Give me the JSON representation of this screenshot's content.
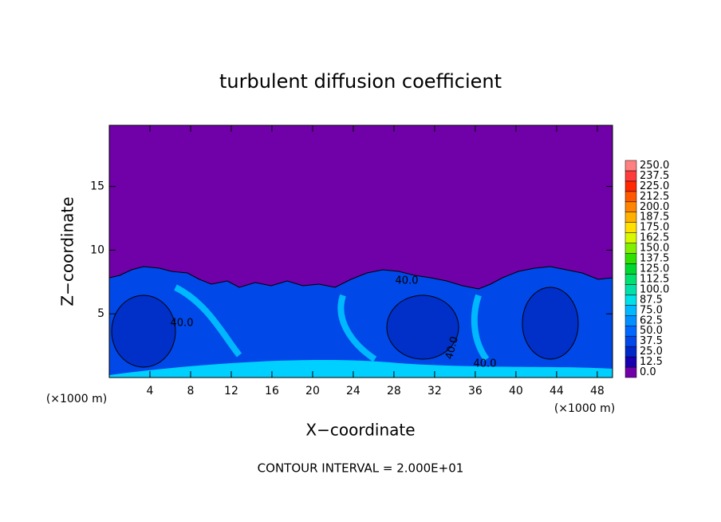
{
  "chart_data": {
    "type": "contour",
    "title": "turbulent diffusion coefficient",
    "x_label": "X−coordinate",
    "y_label": "Z−coordinate",
    "x_unit_label": "(×1000 m)",
    "footnote": "CONTOUR INTERVAL = 2.000E+01",
    "xlim": [
      0,
      49.5
    ],
    "ylim": [
      0,
      19.8
    ],
    "xticks": [
      4,
      8,
      12,
      16,
      20,
      24,
      28,
      32,
      36,
      40,
      44,
      48
    ],
    "yticks": [
      5,
      10,
      15
    ],
    "annotations": [
      "40.0",
      "40.0",
      "40.0",
      "40.0"
    ],
    "colorbar": {
      "levels": [
        {
          "value": 0,
          "label": "0.0"
        },
        {
          "value": 12.5,
          "label": "12.5"
        },
        {
          "value": 25,
          "label": "25.0"
        },
        {
          "value": 37.5,
          "label": "37.5"
        },
        {
          "value": 50,
          "label": "50.0"
        },
        {
          "value": 62.5,
          "label": "62.5"
        },
        {
          "value": 75,
          "label": "75.0"
        },
        {
          "value": 87.5,
          "label": "87.5"
        },
        {
          "value": 100,
          "label": "100.0"
        },
        {
          "value": 112.5,
          "label": "112.5"
        },
        {
          "value": 125,
          "label": "125.0"
        },
        {
          "value": 137.5,
          "label": "137.5"
        },
        {
          "value": 150,
          "label": "150.0"
        },
        {
          "value": 162.5,
          "label": "162.5"
        },
        {
          "value": 175,
          "label": "175.0"
        },
        {
          "value": 187.5,
          "label": "187.5"
        },
        {
          "value": 200,
          "label": "200.0"
        },
        {
          "value": 212.5,
          "label": "212.5"
        },
        {
          "value": 225,
          "label": "225.0"
        },
        {
          "value": 237.5,
          "label": "237.5"
        },
        {
          "value": 250,
          "label": "250.0"
        }
      ],
      "colors": [
        "#7000a8",
        "#1800b0",
        "#0028c8",
        "#0048e8",
        "#0068ff",
        "#0090ff",
        "#00b8ff",
        "#00e0e8",
        "#00e0a8",
        "#00e070",
        "#00d830",
        "#30e000",
        "#80f000",
        "#d8f800",
        "#ffe000",
        "#ffb000",
        "#ff8400",
        "#ff5800",
        "#ff2800",
        "#ff3c3c",
        "#ff8080"
      ]
    }
  }
}
